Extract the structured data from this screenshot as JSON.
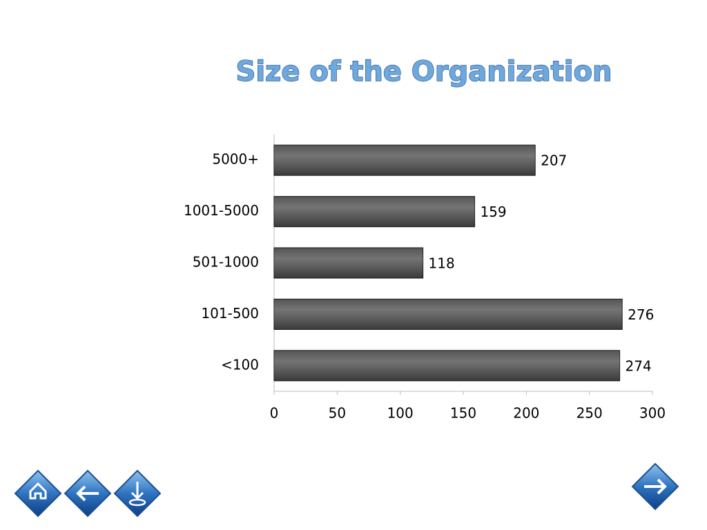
{
  "chart_data": {
    "type": "bar",
    "orientation": "horizontal",
    "title": "Size of the Organization",
    "categories": [
      "5000+",
      "1001-5000",
      "501-1000",
      "101-500",
      "<100"
    ],
    "values": [
      207,
      159,
      118,
      276,
      274
    ],
    "color": "#4d4d4d",
    "xlim": [
      0,
      300
    ],
    "xticks": [
      0,
      50,
      100,
      150,
      200,
      250,
      300
    ],
    "grid": false
  }
}
